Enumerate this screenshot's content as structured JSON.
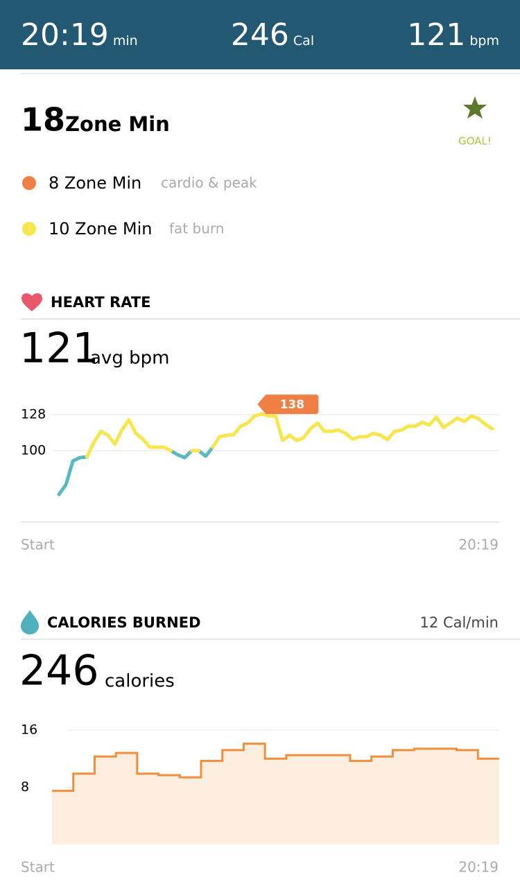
{
  "header": {
    "stats": [
      {
        "value": "20:19",
        "unit": "min"
      },
      {
        "value": 246,
        "unit": "Cal"
      },
      {
        "value": 121,
        "unit": "bpm"
      }
    ]
  },
  "zones": {
    "total": 18,
    "label": "Zone Min",
    "goal": "GOAL!",
    "items": [
      {
        "text": "8 Zone Min",
        "detail": "cardio & peak",
        "color": "#ef7f45"
      },
      {
        "text": "10 Zone Min",
        "detail": "fat burn",
        "color": "#f7e64f"
      }
    ]
  },
  "heart_rate": {
    "title": "HEART RATE",
    "average": 121,
    "average_unit": "avg bpm",
    "chart_data": {
      "type": "line",
      "x_labels": [
        "Start",
        "20:19"
      ],
      "ylim": [
        44.5,
        148.5
      ],
      "yticks": [
        100,
        128
      ],
      "grid": true,
      "annotation": 138,
      "annotation_color": "#ef7f45",
      "series": [
        {
          "color": "#5ab8c0",
          "values": [
            66,
            73.5,
            92,
            94.6,
            95,
            null,
            null,
            null,
            null,
            null,
            null,
            null,
            null,
            null,
            null,
            null,
            100,
            96.8,
            94.6,
            100,
            100,
            95.7,
            102.7,
            null,
            null,
            null,
            null,
            null,
            null,
            null,
            null,
            null,
            null,
            null,
            null,
            null,
            null,
            null,
            null,
            null,
            null,
            null,
            null,
            null,
            null,
            null,
            null,
            null,
            null,
            null,
            null,
            null,
            null,
            null,
            null,
            null,
            null,
            null,
            null,
            null,
            null,
            null,
            null
          ]
        },
        {
          "color": "#f7e64f",
          "values": [
            null,
            null,
            null,
            null,
            95,
            106.5,
            115,
            112,
            105,
            116,
            124,
            113.5,
            109,
            102.7,
            102.7,
            102.7,
            100,
            null,
            null,
            100,
            100,
            null,
            102.7,
            110.8,
            112,
            112.4,
            119,
            121.5,
            127,
            128.5,
            127,
            127,
            108,
            112,
            108,
            110,
            117,
            121.5,
            115,
            115,
            116,
            113.5,
            109,
            110.8,
            110.8,
            113.5,
            112,
            108.6,
            115,
            116,
            119,
            119,
            122,
            120,
            126,
            118,
            121.5,
            125.3,
            122.6,
            127,
            125,
            120.5,
            117
          ]
        }
      ]
    }
  },
  "calories": {
    "title": "CALORIES BURNED",
    "rate": "12 Cal/min",
    "total": 246,
    "total_unit": "calories",
    "chart_data": {
      "type": "step-area",
      "x_labels": [
        "Start",
        "20:19"
      ],
      "ylim": [
        0,
        16
      ],
      "yticks": [
        8,
        16
      ],
      "grid": true,
      "color": "#ef8e3b",
      "fill": "#fdeee0",
      "values": [
        7.5,
        9.9,
        12.3,
        12.8,
        9.9,
        9.7,
        9.4,
        11.7,
        13.2,
        14.1,
        12.0,
        12.5,
        12.5,
        12.5,
        11.7,
        12.3,
        13.2,
        13.4,
        13.4,
        13.2,
        12.0
      ]
    }
  }
}
